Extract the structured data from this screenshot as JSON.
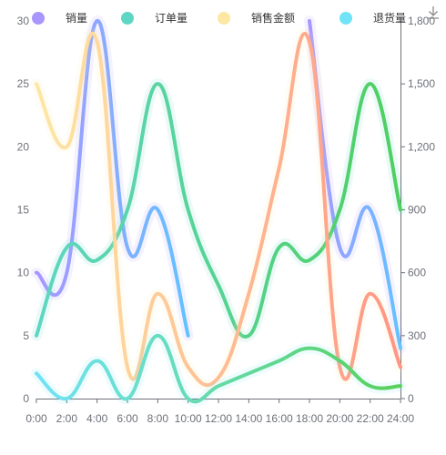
{
  "chart_data": {
    "type": "line",
    "categories": [
      "0:00",
      "2:00",
      "4:00",
      "6:00",
      "8:00",
      "10:00",
      "12:00",
      "14:00",
      "16:00",
      "18:00",
      "20:00",
      "22:00",
      "24:00"
    ],
    "left_axis": {
      "ylim": [
        0,
        30
      ],
      "ticks": [
        "0",
        "5",
        "10",
        "15",
        "20",
        "25",
        "30"
      ]
    },
    "right_axis": {
      "ylim": [
        0,
        1800
      ],
      "ticks": [
        "0",
        "300",
        "600",
        "900",
        "1,200",
        "1,500",
        "1,800"
      ]
    },
    "series": [
      {
        "name": "销量",
        "axis": "left",
        "color": "#a996ff",
        "gradient_end": "#62c2ff",
        "values": [
          10,
          10,
          30,
          12,
          15,
          5,
          null,
          null,
          null,
          30,
          12,
          15,
          4
        ]
      },
      {
        "name": "订单量",
        "axis": "left",
        "color": "#5ed6c3",
        "gradient_end": "#4fd05f",
        "values": [
          5,
          12,
          11,
          15,
          25,
          15,
          9,
          5,
          12,
          11,
          15,
          25,
          15
        ]
      },
      {
        "name": "销售金额",
        "axis": "right",
        "color": "#fde7a3",
        "gradient_end": "#ff9585",
        "values": [
          1500,
          1200,
          1700,
          150,
          500,
          150,
          100,
          500,
          1100,
          1700,
          150,
          500,
          150
        ]
      },
      {
        "name": "退货量",
        "axis": "left",
        "color": "#71e3f6",
        "gradient_end": "#58d15a",
        "values": [
          2,
          0,
          3,
          0,
          5,
          0,
          1,
          2,
          3,
          4,
          3,
          1,
          1
        ]
      }
    ],
    "legend_position": "top"
  }
}
